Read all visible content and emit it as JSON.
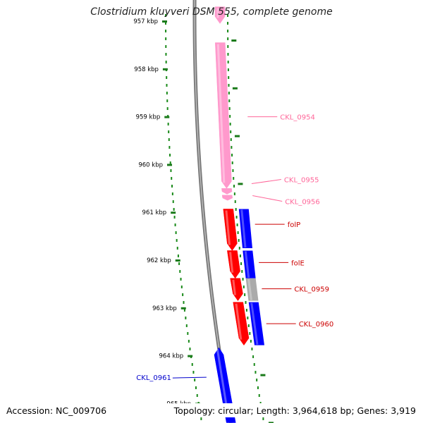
{
  "title": "Clostridium kluyveri DSM 555, complete genome",
  "footer": {
    "accession": "Accession: NC_009706",
    "summary": "Topology: circular; Length: 3,964,618 bp; Genes: 3,919"
  },
  "ticks": [
    {
      "label": "957 kbp",
      "kb": 957
    },
    {
      "label": "958 kbp",
      "kb": 958
    },
    {
      "label": "959 kbp",
      "kb": 959
    },
    {
      "label": "960 kbp",
      "kb": 960
    },
    {
      "label": "961 kbp",
      "kb": 961
    },
    {
      "label": "962 kbp",
      "kb": 962
    },
    {
      "label": "963 kbp",
      "kb": 963
    },
    {
      "label": "964 kbp",
      "kb": 964
    },
    {
      "label": "965 kbp",
      "kb": 965
    }
  ],
  "genes": [
    {
      "label": "",
      "start_kb": 956.7,
      "end_kb": 957.05,
      "strand": "+",
      "track": "inner",
      "color": "#ff99cc"
    },
    {
      "label": "CKL_0954",
      "start_kb": 957.45,
      "end_kb": 960.5,
      "strand": "+",
      "track": "inner",
      "color": "#ff99cc"
    },
    {
      "label": "CKL_0955",
      "start_kb": 960.5,
      "end_kb": 960.62,
      "strand": "+",
      "track": "inner",
      "color": "#ff99cc"
    },
    {
      "label": "CKL_0956",
      "start_kb": 960.64,
      "end_kb": 960.75,
      "strand": "+",
      "track": "inner",
      "color": "#ff99cc"
    },
    {
      "label": "folP",
      "start_kb": 960.93,
      "end_kb": 961.8,
      "strand": "+",
      "track": "inner",
      "color": "#ff0000"
    },
    {
      "label": "folE",
      "start_kb": 961.8,
      "end_kb": 962.38,
      "strand": "+",
      "track": "inner",
      "color": "#ff0000"
    },
    {
      "label": "CKL_0959",
      "start_kb": 962.38,
      "end_kb": 962.85,
      "strand": "+",
      "track": "inner",
      "color": "#ff0000"
    },
    {
      "label": "CKL_0960",
      "start_kb": 962.88,
      "end_kb": 963.78,
      "strand": "+",
      "track": "inner",
      "color": "#ff0000"
    },
    {
      "label": "CKL_0961",
      "start_kb": 963.83,
      "end_kb": 965.4,
      "strand": "-",
      "track": "outer-left",
      "color": "#0000ff"
    }
  ],
  "features": [
    {
      "start_kb": 960.93,
      "end_kb": 961.75,
      "color": "#0000ff"
    },
    {
      "start_kb": 961.8,
      "end_kb": 962.38,
      "color": "#0000ff"
    },
    {
      "start_kb": 962.38,
      "end_kb": 962.85,
      "color": "#aaaaaa"
    },
    {
      "start_kb": 962.88,
      "end_kb": 963.78,
      "color": "#0000ff"
    }
  ],
  "labels": [
    {
      "text": "CKL_0954",
      "color": "#ff6699",
      "anchor_kb": 959.0
    },
    {
      "text": "CKL_0955",
      "color": "#ff6699",
      "anchor_kb": 960.4
    },
    {
      "text": "CKL_0956",
      "color": "#ff6699",
      "anchor_kb": 960.65
    },
    {
      "text": "folP",
      "color": "#cc0000",
      "anchor_kb": 961.25
    },
    {
      "text": "folE",
      "color": "#cc0000",
      "anchor_kb": 962.05
    },
    {
      "text": "CKL_0959",
      "color": "#cc0000",
      "anchor_kb": 962.6
    },
    {
      "text": "CKL_0960",
      "color": "#cc0000",
      "anchor_kb": 963.33
    },
    {
      "text": "CKL_0961",
      "color": "#0000cc",
      "anchor_kb": 964.45
    }
  ]
}
